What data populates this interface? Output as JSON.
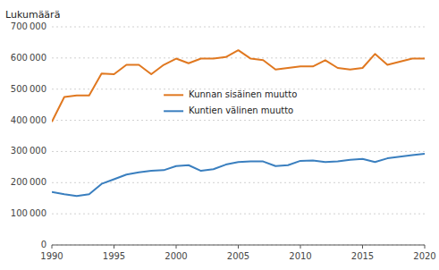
{
  "chart_data": {
    "type": "line",
    "ylabel": "Lukumäärä",
    "x": [
      1990,
      1991,
      1992,
      1993,
      1994,
      1995,
      1996,
      1997,
      1998,
      1999,
      2000,
      2001,
      2002,
      2003,
      2004,
      2005,
      2006,
      2007,
      2008,
      2009,
      2010,
      2011,
      2012,
      2013,
      2014,
      2015,
      2016,
      2017,
      2018,
      2019,
      2020
    ],
    "series": [
      {
        "name": "Kunnan sisäinen muutto",
        "color": "#E07820",
        "values": [
          395000,
          475000,
          480000,
          480000,
          550000,
          548000,
          578000,
          578000,
          548000,
          578000,
          598000,
          583000,
          598000,
          598000,
          603000,
          625000,
          598000,
          593000,
          563000,
          568000,
          573000,
          573000,
          593000,
          568000,
          563000,
          568000,
          613000,
          578000,
          588000,
          598000,
          598000
        ]
      },
      {
        "name": "Kuntien välinen muutto",
        "color": "#3A7FBF",
        "values": [
          170000,
          163000,
          157000,
          163000,
          196000,
          211000,
          226000,
          233000,
          238000,
          240000,
          253000,
          256000,
          238000,
          243000,
          258000,
          266000,
          268000,
          268000,
          253000,
          256000,
          270000,
          271000,
          266000,
          268000,
          273000,
          276000,
          266000,
          278000,
          283000,
          288000,
          293000
        ]
      }
    ],
    "xlim": [
      1990,
      2020
    ],
    "xticks": [
      1990,
      1995,
      2000,
      2005,
      2010,
      2015,
      2020
    ],
    "ylim": [
      0,
      700000
    ],
    "yticks": [
      0,
      {
        "value": 100000,
        "label": "100 000"
      },
      {
        "value": 200000,
        "label": "200 000"
      },
      {
        "value": 300000,
        "label": "300 000"
      },
      {
        "value": 400000,
        "label": "400 000"
      },
      {
        "value": 500000,
        "label": "500 000"
      },
      {
        "value": 600000,
        "label": "600 000"
      },
      {
        "value": 700000,
        "label": "700 000"
      }
    ],
    "grid": true,
    "legend": "center left"
  }
}
